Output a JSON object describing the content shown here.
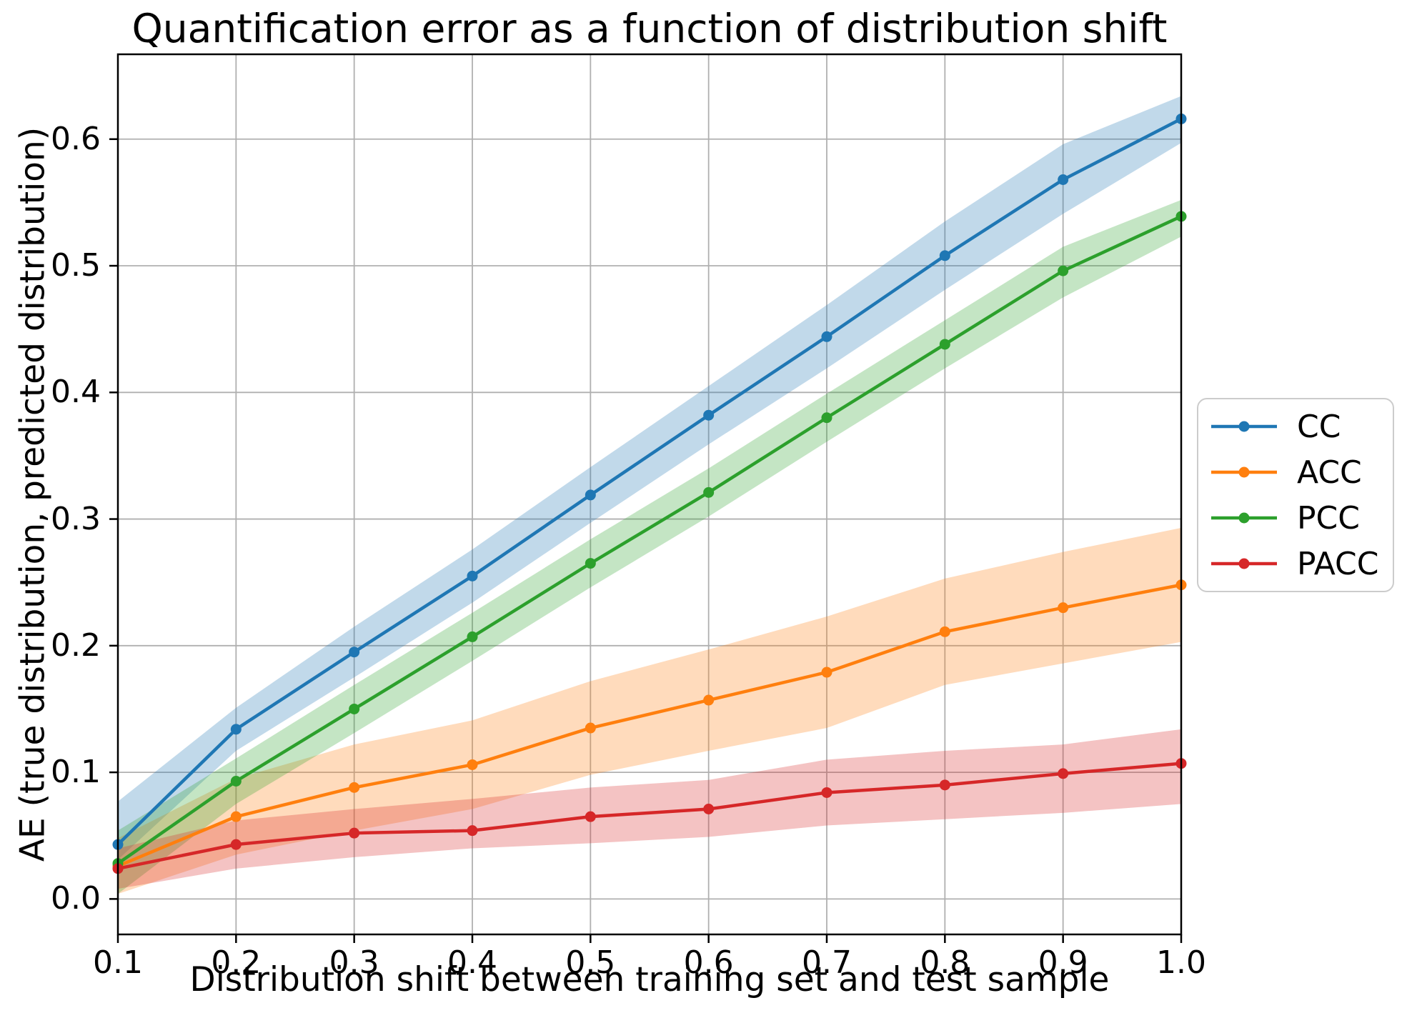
{
  "figure": {
    "title": "Quantification error as a function of distribution shift",
    "xlabel": "Distribution shift between training set and test sample",
    "ylabel": "AE (true distribution, predicted distribution)"
  },
  "chart_data": {
    "type": "line",
    "title": "Quantification error as a function of distribution shift",
    "xlabel": "Distribution shift between training set and test sample",
    "ylabel": "AE (true distribution, predicted distribution)",
    "grid": true,
    "legend_position": "outside-right",
    "xlim": [
      0.1,
      1.0
    ],
    "ylim": [
      -0.028,
      0.667
    ],
    "x": [
      0.1,
      0.2,
      0.3,
      0.4,
      0.5,
      0.6,
      0.7,
      0.8,
      0.9,
      1.0
    ],
    "xtick_labels": [
      "0.1",
      "0.2",
      "0.3",
      "0.4",
      "0.5",
      "0.6",
      "0.7",
      "0.8",
      "0.9",
      "1.0"
    ],
    "ytick_values": [
      0.0,
      0.1,
      0.2,
      0.3,
      0.4,
      0.5,
      0.6
    ],
    "ytick_labels": [
      "0.0",
      "0.1",
      "0.2",
      "0.3",
      "0.4",
      "0.5",
      "0.6"
    ],
    "band_opacity": 0.28,
    "grid_color": "#b0b0b0",
    "series": [
      {
        "name": "CC",
        "color": "#1f77b4",
        "values": [
          0.043,
          0.134,
          0.195,
          0.255,
          0.319,
          0.382,
          0.444,
          0.508,
          0.568,
          0.616
        ],
        "band_lower": [
          0.031,
          0.117,
          0.175,
          0.234,
          0.297,
          0.359,
          0.419,
          0.481,
          0.541,
          0.597
        ],
        "band_upper": [
          0.077,
          0.151,
          0.215,
          0.276,
          0.341,
          0.405,
          0.469,
          0.535,
          0.596,
          0.634
        ]
      },
      {
        "name": "ACC",
        "color": "#ff7f0e",
        "values": [
          0.026,
          0.065,
          0.088,
          0.106,
          0.135,
          0.157,
          0.179,
          0.211,
          0.23,
          0.248
        ],
        "band_lower": [
          0.004,
          0.035,
          0.054,
          0.071,
          0.098,
          0.117,
          0.135,
          0.169,
          0.186,
          0.203
        ],
        "band_upper": [
          0.048,
          0.095,
          0.122,
          0.141,
          0.172,
          0.197,
          0.223,
          0.253,
          0.274,
          0.293
        ]
      },
      {
        "name": "PCC",
        "color": "#2ca02c",
        "values": [
          0.028,
          0.093,
          0.15,
          0.207,
          0.265,
          0.321,
          0.38,
          0.438,
          0.496,
          0.539
        ],
        "band_lower": [
          0.004,
          0.075,
          0.131,
          0.188,
          0.246,
          0.302,
          0.361,
          0.419,
          0.475,
          0.523
        ],
        "band_upper": [
          0.054,
          0.111,
          0.169,
          0.226,
          0.284,
          0.34,
          0.399,
          0.457,
          0.515,
          0.552
        ]
      },
      {
        "name": "PACC",
        "color": "#d62728",
        "values": [
          0.024,
          0.043,
          0.052,
          0.054,
          0.065,
          0.071,
          0.084,
          0.09,
          0.099,
          0.107
        ],
        "band_lower": [
          0.008,
          0.024,
          0.033,
          0.04,
          0.044,
          0.049,
          0.058,
          0.063,
          0.068,
          0.075
        ],
        "band_upper": [
          0.04,
          0.062,
          0.071,
          0.079,
          0.088,
          0.094,
          0.11,
          0.117,
          0.122,
          0.134
        ]
      }
    ]
  }
}
